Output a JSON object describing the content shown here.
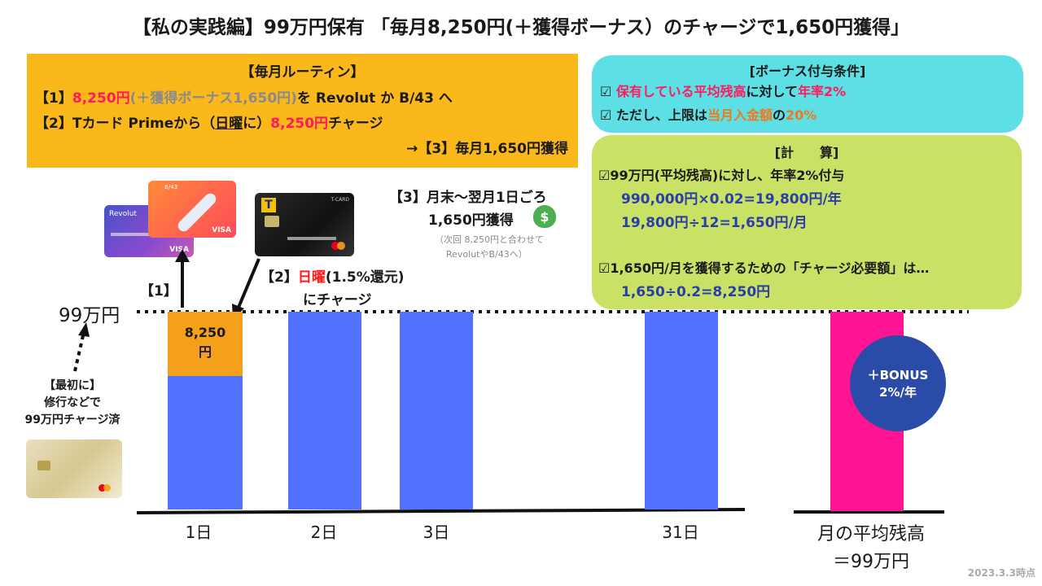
{
  "title": "【私の実践編】99万円保有 「毎月8,250円(＋獲得ボーナス）のチャージで1,650円獲得」",
  "routine": {
    "heading": "【毎月ルーティン】",
    "line1_prefix": "【1】",
    "line1_amount": "8,250円",
    "line1_bonus": "(＋獲得ボーナス1,650円)",
    "line1_suffix": "を Revolut か B/43 へ",
    "line2_prefix": "【2】Tカードから（",
    "line2_card": "Tカード Prime",
    "line2_day": "日曜",
    "line2_mid": "に）",
    "line2_amount": "8,250円",
    "line2_suffix": "チャージ",
    "line3": "→【3】毎月1,650円獲得"
  },
  "conditions": {
    "heading": "[ボーナス付与条件]",
    "item1_a": "保有している平均残高",
    "item1_b": "に対して",
    "item1_c": "年率2%",
    "item2_a": "ただし、上限は",
    "item2_b": "当月入金額",
    "item2_c": "の",
    "item2_d": "20%"
  },
  "calculation": {
    "heading": "[計　　算]",
    "item1": "99万円(平均残高)に対し、年率2%付与",
    "calc1": "990,000円×0.02=19,800円/年",
    "calc2": "19,800円÷12=1,650円/月",
    "item2": "1,650円/月を獲得するための「チャージ必要額」は…",
    "calc3": "1,650÷0.2=8,250円"
  },
  "annotations": {
    "month_end_line1": "【3】月末〜翌月1日ごろ",
    "month_end_line2": "1,650円獲得",
    "month_end_note1": "（次回 8,250円と合わせて",
    "month_end_note2": "RevolutやB/43へ）",
    "step1": "【1】",
    "step2_prefix": "【2】",
    "step2_day": "日曜",
    "step2_rate": "(1.5%還元)",
    "step2_line2": "にチャージ",
    "level_label": "99万円",
    "first_line1": "【最初に】",
    "first_line2": "修行などで",
    "first_line3": "99万円チャージ済",
    "charge_amount_line1": "8,250",
    "charge_amount_line2": "円",
    "bonus_line1": "＋BONUS",
    "bonus_line2": "2%/年",
    "avg_line1": "月の平均残高",
    "avg_line2": "＝99万円",
    "date": "2023.3.3時点"
  },
  "cards": {
    "revolut": "Revolut",
    "b43": "B/43",
    "visa": "VISA",
    "tcard": "T-CARD"
  },
  "chart_data": {
    "type": "bar",
    "categories": [
      "1日",
      "2日",
      "3日",
      "31日",
      "月の平均残高"
    ],
    "values": [
      990000,
      990000,
      990000,
      990000,
      990000
    ],
    "stacked_top_day1": 8250,
    "threshold_label": "99万円",
    "colors": {
      "balance": "#5271ff",
      "charge": "#f5a01a",
      "average": "#ff1493"
    }
  },
  "colors": {
    "routine_bg": "#fbb81a",
    "conditions_bg": "#5ce0e6",
    "calculation_bg": "#c9e265",
    "accent_pink": "#ff1a5e",
    "accent_blue": "#2b3ea8"
  }
}
